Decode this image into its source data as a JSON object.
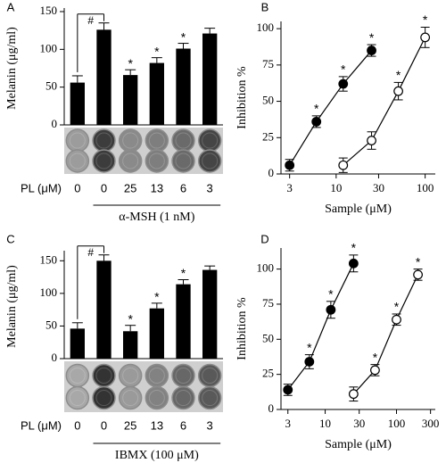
{
  "figure": {
    "panels": [
      {
        "letter": "A",
        "plate_label": "PL (μM)",
        "doses": [
          "0",
          "0",
          "25",
          "13",
          "6",
          "3"
        ],
        "stimulus": "α-MSH (1 nM)"
      },
      {
        "letter": "B"
      },
      {
        "letter": "C",
        "plate_label": "PL (μM)",
        "doses": [
          "0",
          "0",
          "25",
          "13",
          "6",
          "3"
        ],
        "stimulus": "IBMX (100 μM)"
      },
      {
        "letter": "D"
      }
    ],
    "colors": {
      "bar": "#000000",
      "filled_marker": "#000000",
      "open_marker": "#ffffff",
      "well_dark": "#3a3a3a",
      "well_light": "#b8b8b8"
    }
  },
  "chart_data": [
    {
      "type": "bar",
      "panel": "A",
      "ylabel": "Melanin (μg/ml)",
      "ylim": [
        0,
        150
      ],
      "yticks": [
        0,
        50,
        100,
        150
      ],
      "categories": [
        "0",
        "0",
        "25",
        "13",
        "6",
        "3"
      ],
      "values": [
        56,
        126,
        66,
        82,
        101,
        121
      ],
      "errors": [
        9,
        9,
        7,
        7,
        7,
        7
      ],
      "significance": [
        "",
        "",
        "*",
        "*",
        "*",
        ""
      ],
      "bracket_label": "#",
      "bracket_between": [
        0,
        1
      ]
    },
    {
      "type": "scatter",
      "panel": "B",
      "xlabel": "Sample (μM)",
      "ylabel": "Inhibition %",
      "xscale": "log",
      "xlim": [
        2.4,
        130
      ],
      "xticks": [
        3,
        10,
        30,
        100
      ],
      "ylim": [
        0,
        105
      ],
      "yticks": [
        0,
        25,
        50,
        75,
        100
      ],
      "series": [
        {
          "marker": "filled",
          "x": [
            3,
            6,
            12,
            25
          ],
          "y": [
            6,
            36,
            62,
            85
          ],
          "errors": [
            4,
            4,
            5,
            4
          ],
          "significance": [
            "",
            "*",
            "*",
            "*"
          ]
        },
        {
          "marker": "open",
          "x": [
            12,
            25,
            50,
            100
          ],
          "y": [
            6,
            23,
            57,
            94
          ],
          "errors": [
            5,
            6,
            6,
            7
          ],
          "significance": [
            "",
            "",
            "*",
            "*"
          ]
        }
      ]
    },
    {
      "type": "bar",
      "panel": "C",
      "ylabel": "Melanin (μg/ml)",
      "ylim": [
        0,
        160
      ],
      "yticks": [
        0,
        50,
        100,
        150
      ],
      "categories": [
        "0",
        "0",
        "25",
        "13",
        "6",
        "3"
      ],
      "values": [
        46,
        150,
        42,
        77,
        114,
        136
      ],
      "errors": [
        9,
        9,
        9,
        8,
        7,
        6
      ],
      "significance": [
        "",
        "",
        "*",
        "*",
        "*",
        ""
      ],
      "bracket_label": "#",
      "bracket_between": [
        0,
        1
      ]
    },
    {
      "type": "scatter",
      "panel": "D",
      "xlabel": "Sample (μM)",
      "ylabel": "Inhibition %",
      "xscale": "log",
      "xlim": [
        2.4,
        350
      ],
      "xticks": [
        3,
        10,
        30,
        100,
        300
      ],
      "ylim": [
        0,
        115
      ],
      "yticks": [
        0,
        25,
        50,
        75,
        100
      ],
      "series": [
        {
          "marker": "filled",
          "x": [
            3,
            6,
            12,
            25
          ],
          "y": [
            14,
            34,
            71,
            104
          ],
          "errors": [
            4,
            5,
            6,
            6
          ],
          "significance": [
            "",
            "*",
            "*",
            "*"
          ]
        },
        {
          "marker": "open",
          "x": [
            25,
            50,
            100,
            200
          ],
          "y": [
            11,
            28,
            64,
            96
          ],
          "errors": [
            5,
            4,
            4,
            4
          ],
          "significance": [
            "",
            "*",
            "*",
            "*"
          ]
        }
      ]
    }
  ]
}
